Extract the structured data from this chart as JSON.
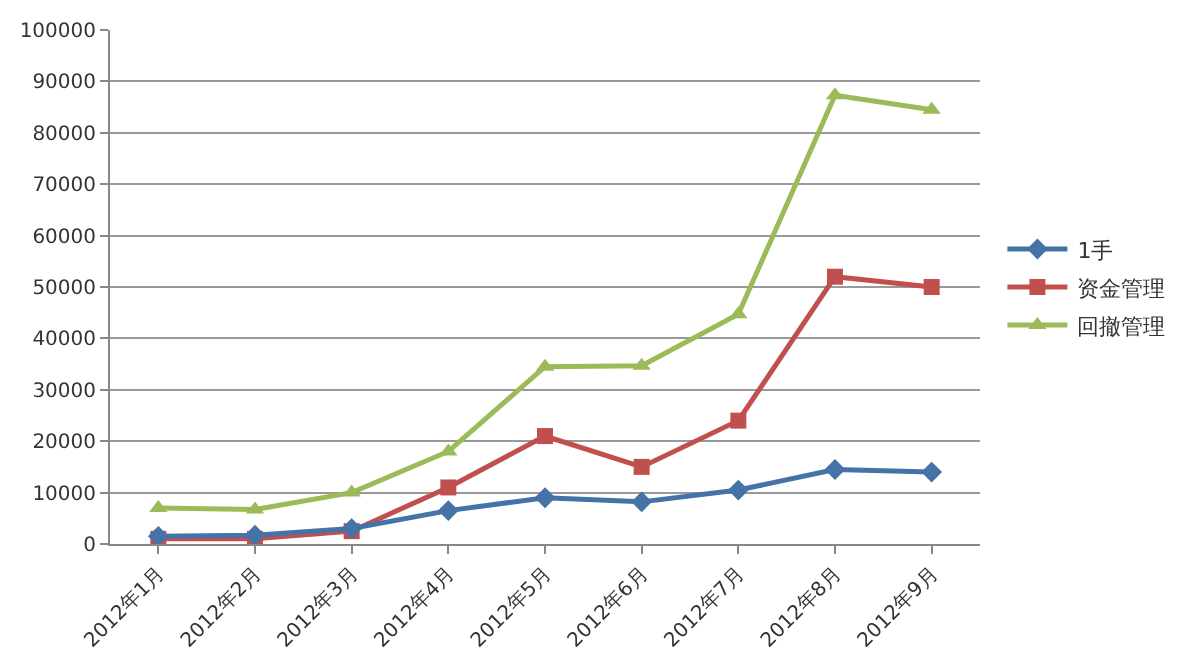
{
  "chart_data": {
    "type": "line",
    "categories": [
      "2012年1月",
      "2012年2月",
      "2012年3月",
      "2012年4月",
      "2012年5月",
      "2012年6月",
      "2012年7月",
      "2012年8月",
      "2012年9月"
    ],
    "series": [
      {
        "name": "1手",
        "color": "#4572a7",
        "marker": "diamond",
        "values": [
          1500,
          1700,
          3000,
          6500,
          9000,
          8200,
          10500,
          14500,
          14000
        ]
      },
      {
        "name": "资金管理",
        "color": "#c0504d",
        "marker": "square",
        "values": [
          1000,
          1000,
          2500,
          11000,
          21000,
          15000,
          24000,
          52000,
          50000
        ]
      },
      {
        "name": "回撤管理",
        "color": "#9bbb59",
        "marker": "triangle",
        "values": [
          7000,
          6700,
          10000,
          18000,
          34500,
          34700,
          44700,
          87300,
          84500
        ]
      }
    ],
    "ylim": [
      0,
      100000
    ],
    "yticks": [
      0,
      10000,
      20000,
      30000,
      40000,
      50000,
      60000,
      70000,
      80000,
      90000,
      100000
    ],
    "grid": "y",
    "legend": "right",
    "line_style": "solid"
  }
}
